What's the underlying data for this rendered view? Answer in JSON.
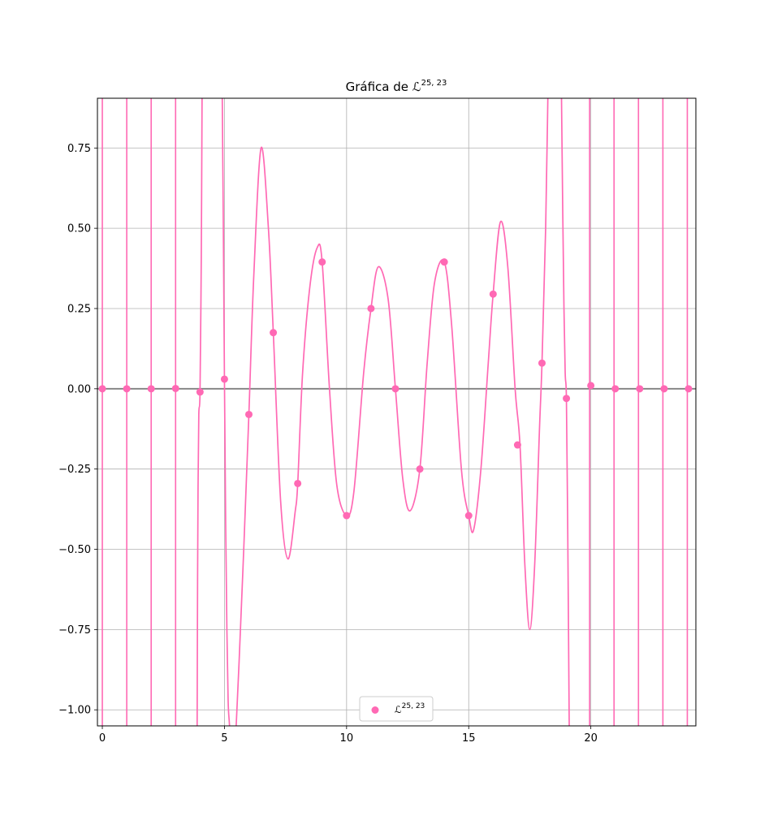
{
  "chart_data": {
    "type": "scatter",
    "title": "Gráfica de ℒ^{25,23}",
    "title_parts": {
      "prefix": "Gráfica de ",
      "symbol": "ℒ",
      "superscript": "25, 23"
    },
    "xlim": [
      -0.2,
      24.3
    ],
    "ylim": [
      -1.05,
      0.905
    ],
    "xticks": [
      0,
      5,
      10,
      15,
      20
    ],
    "xtick_labels": [
      "0",
      "5",
      "10",
      "15",
      "20"
    ],
    "yticks": [
      0.75,
      0.5,
      0.25,
      0.0,
      -0.25,
      -0.5,
      -0.75,
      -1.0
    ],
    "ytick_labels": [
      "0.75",
      "0.50",
      "0.25",
      "0.00",
      "−0.25",
      "−0.50",
      "−0.75",
      "−1.00"
    ],
    "grid": true,
    "legend": {
      "placement": "lower center",
      "symbol": "ℒ",
      "superscript": "25, 23"
    },
    "colors": {
      "series": "#ff69b4",
      "zero_line": "#808080",
      "grid": "#b0b0b0"
    },
    "series": [
      {
        "name": "ℒ^{25,23}",
        "x": [
          0,
          1,
          2,
          3,
          4,
          5,
          6,
          7,
          8,
          9,
          10,
          11,
          12,
          13,
          14,
          15,
          16,
          17,
          18,
          19,
          20,
          21,
          22,
          23,
          24
        ],
        "y": [
          0.0,
          0.0,
          0.0,
          0.001,
          -0.01,
          0.03,
          -0.08,
          0.175,
          -0.295,
          0.395,
          -0.395,
          0.25,
          0.0,
          -0.25,
          0.395,
          -0.395,
          0.295,
          -0.175,
          0.08,
          -0.03,
          0.01,
          0.0,
          0.0,
          0.0,
          0.0
        ]
      }
    ],
    "curve": {
      "segments": [
        {
          "x": [
            3.88,
            3.9,
            3.92,
            3.95,
            4.0,
            4.05,
            4.08,
            4.1
          ],
          "y": [
            -1.1,
            -0.6,
            -0.3,
            -0.08,
            -0.01,
            0.4,
            0.85,
            1.2
          ]
        },
        {
          "x": [
            4.87,
            4.9,
            4.95,
            5.0,
            5.05,
            5.1,
            5.15,
            5.2,
            5.25
          ],
          "y": [
            1.2,
            1.0,
            0.55,
            0.03,
            -0.42,
            -0.75,
            -0.97,
            -1.04,
            -1.1
          ]
        },
        {
          "x": [
            5.45,
            5.6,
            5.8,
            6.0,
            6.2,
            6.5,
            6.8,
            7.0,
            7.3,
            7.6,
            7.9,
            8.0,
            8.2,
            8.5,
            8.8,
            9.0,
            9.3,
            9.6,
            10.0,
            10.3,
            10.7,
            11.0,
            11.3,
            11.7,
            12.0,
            12.3,
            12.6,
            13.0,
            13.3,
            13.6,
            14.0,
            14.3,
            14.7,
            15.0,
            15.2,
            15.5,
            15.8,
            16.0,
            16.3,
            16.6,
            16.9,
            17.1,
            17.3,
            17.5,
            17.7,
            17.9,
            18.0,
            18.15,
            18.3
          ],
          "y": [
            -1.1,
            -0.85,
            -0.48,
            -0.08,
            0.35,
            0.75,
            0.5,
            0.175,
            -0.35,
            -0.53,
            -0.38,
            -0.295,
            0.05,
            0.32,
            0.44,
            0.395,
            0.0,
            -0.3,
            -0.395,
            -0.32,
            0.05,
            0.25,
            0.38,
            0.28,
            0.0,
            -0.28,
            -0.38,
            -0.25,
            0.08,
            0.33,
            0.395,
            0.2,
            -0.25,
            -0.395,
            -0.44,
            -0.25,
            0.08,
            0.295,
            0.52,
            0.38,
            0.0,
            -0.175,
            -0.55,
            -0.75,
            -0.55,
            -0.12,
            0.08,
            0.5,
            1.2
          ]
        },
        {
          "x": [
            18.75,
            18.8,
            18.85,
            18.9,
            18.95,
            19.0,
            19.05,
            19.12
          ],
          "y": [
            1.2,
            0.9,
            0.55,
            0.25,
            0.05,
            -0.03,
            -0.4,
            -1.1
          ]
        }
      ],
      "spikes": [
        0,
        1,
        2,
        3,
        19.95,
        20.95,
        21.95,
        22.95,
        23.95
      ]
    }
  }
}
